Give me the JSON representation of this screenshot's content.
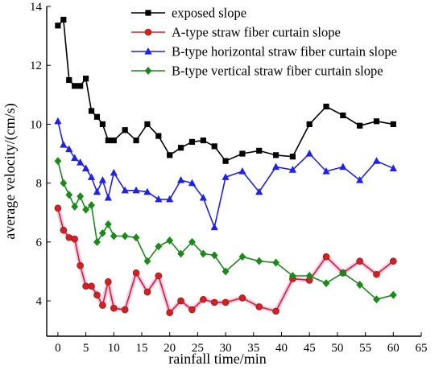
{
  "chart_data": {
    "type": "line",
    "xlabel": "rainfall time/min",
    "ylabel": "average velocity/(cm/s)",
    "xlim": [
      -2,
      65
    ],
    "ylim": [
      2.8,
      14
    ],
    "xticks": [
      0,
      5,
      10,
      15,
      20,
      25,
      30,
      35,
      40,
      45,
      50,
      55,
      60,
      65
    ],
    "yticks": [
      4,
      6,
      8,
      10,
      12,
      14
    ],
    "legend_position": "top-right",
    "series": [
      {
        "name": "exposed slope",
        "color": "#000000",
        "marker": "square",
        "x": [
          0,
          1,
          2,
          3,
          4,
          5,
          6,
          7,
          8,
          9,
          10,
          12,
          14,
          16,
          18,
          20,
          22,
          24,
          26,
          28,
          30,
          33,
          36,
          39,
          42,
          45,
          48,
          51,
          54,
          57,
          60
        ],
        "y": [
          13.35,
          13.55,
          11.5,
          11.3,
          11.3,
          11.55,
          10.45,
          10.25,
          10.0,
          9.45,
          9.45,
          9.8,
          9.45,
          10.0,
          9.6,
          8.95,
          9.2,
          9.4,
          9.45,
          9.25,
          8.75,
          9.0,
          9.1,
          8.95,
          8.9,
          10.0,
          10.6,
          10.3,
          9.95,
          10.1,
          10.0
        ]
      },
      {
        "name": "A-type straw fiber curtain slope",
        "color": "#d42020",
        "marker": "circle",
        "x": [
          0,
          1,
          2,
          3,
          4,
          5,
          6,
          7,
          8,
          9,
          10,
          12,
          14,
          16,
          18,
          20,
          22,
          24,
          26,
          28,
          30,
          33,
          36,
          39,
          42,
          45,
          48,
          51,
          54,
          57,
          60
        ],
        "y": [
          7.15,
          6.4,
          6.15,
          6.1,
          5.2,
          4.5,
          4.5,
          4.2,
          3.85,
          4.65,
          3.75,
          3.7,
          4.95,
          4.3,
          4.85,
          3.6,
          4.0,
          3.7,
          4.05,
          3.95,
          3.95,
          4.1,
          3.8,
          3.65,
          4.75,
          4.7,
          5.5,
          4.95,
          5.35,
          4.9,
          5.35
        ]
      },
      {
        "name": "B-type horizontal straw fiber curtain slope",
        "color": "#1f1ff0",
        "marker": "triangle",
        "x": [
          0,
          1,
          2,
          3,
          4,
          5,
          6,
          7,
          8,
          9,
          10,
          12,
          14,
          16,
          18,
          20,
          22,
          24,
          26,
          28,
          30,
          33,
          36,
          39,
          42,
          45,
          48,
          51,
          54,
          57,
          60
        ],
        "y": [
          10.1,
          9.3,
          9.15,
          8.85,
          8.7,
          8.5,
          8.2,
          7.7,
          8.1,
          7.5,
          8.35,
          7.75,
          7.75,
          7.7,
          7.45,
          7.45,
          8.1,
          8.0,
          7.5,
          6.5,
          8.2,
          8.4,
          7.7,
          8.55,
          8.45,
          9.0,
          8.4,
          8.55,
          8.1,
          8.75,
          8.5
        ]
      },
      {
        "name": "B-type vertical straw fiber curtain slope",
        "color": "#1a8a1a",
        "marker": "diamond",
        "x": [
          0,
          1,
          2,
          3,
          4,
          5,
          6,
          7,
          8,
          9,
          10,
          12,
          14,
          16,
          18,
          20,
          22,
          24,
          26,
          28,
          30,
          33,
          36,
          39,
          42,
          45,
          48,
          51,
          54,
          57,
          60
        ],
        "y": [
          8.75,
          8.0,
          7.6,
          7.2,
          7.55,
          7.1,
          7.25,
          6.0,
          6.3,
          6.6,
          6.2,
          6.2,
          6.15,
          5.35,
          5.85,
          6.05,
          5.6,
          6.0,
          5.6,
          5.55,
          5.0,
          5.5,
          5.35,
          5.3,
          4.85,
          4.85,
          4.6,
          4.95,
          4.55,
          4.05,
          4.2
        ]
      }
    ]
  }
}
